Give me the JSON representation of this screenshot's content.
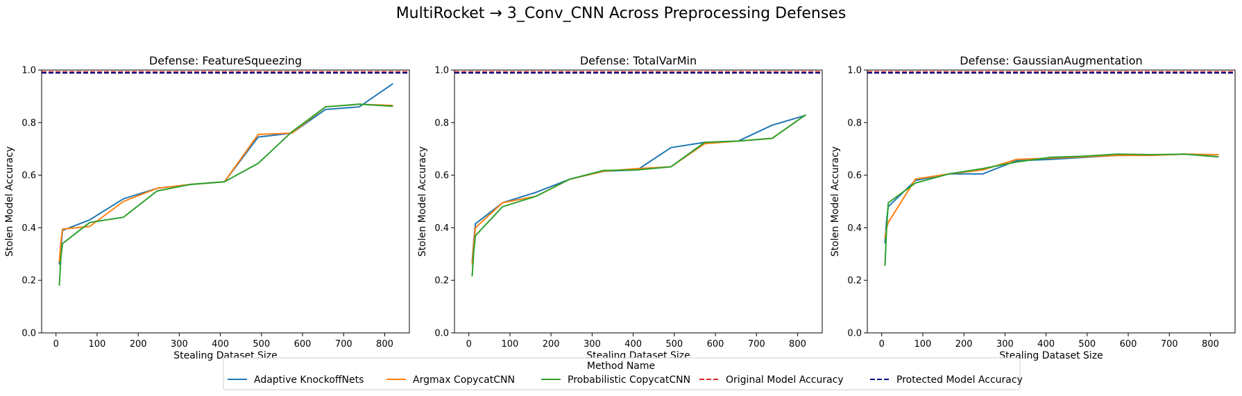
{
  "suptitle": "MultiRocket → 3_Conv_CNN Across Preprocessing Defenses",
  "legend": {
    "title": "Method Name",
    "placement": "bottom-center",
    "entries": [
      {
        "label": "Adaptive KnockoffNets",
        "color": "#1f77b4",
        "style": "solid"
      },
      {
        "label": "Argmax CopycatCNN",
        "color": "#ff7f0e",
        "style": "solid"
      },
      {
        "label": "Probabilistic CopycatCNN",
        "color": "#2ca02c",
        "style": "solid"
      },
      {
        "label": "Original Model Accuracy",
        "color": "#d62728",
        "style": "dashed"
      },
      {
        "label": "Protected Model Accuracy",
        "color": "#00008b",
        "style": "dashed"
      }
    ]
  },
  "chart_data": [
    {
      "type": "line",
      "title": "Defense: FeatureSqueezing",
      "xlabel": "Stealing Dataset Size",
      "ylabel": "Stolen Model Accuracy",
      "xlim": [
        -35,
        860
      ],
      "ylim": [
        0.0,
        1.0
      ],
      "xticks": [
        0,
        100,
        200,
        300,
        400,
        500,
        600,
        700,
        800
      ],
      "yticks": [
        0.0,
        0.2,
        0.4,
        0.6,
        0.8,
        1.0
      ],
      "grid": false,
      "series": [
        {
          "name": "Adaptive KnockoffNets",
          "x": [
            8,
            12,
            16,
            82,
            164,
            246,
            328,
            410,
            492,
            574,
            656,
            738,
            820
          ],
          "y": [
            0.26,
            0.33,
            0.39,
            0.43,
            0.51,
            0.55,
            0.565,
            0.575,
            0.745,
            0.76,
            0.85,
            0.86,
            0.948
          ]
        },
        {
          "name": "Argmax CopycatCNN",
          "x": [
            8,
            12,
            16,
            82,
            164,
            246,
            328,
            410,
            492,
            574,
            656,
            738,
            820
          ],
          "y": [
            0.27,
            0.35,
            0.395,
            0.405,
            0.5,
            0.55,
            0.565,
            0.575,
            0.755,
            0.76,
            0.86,
            0.87,
            0.865
          ]
        },
        {
          "name": "Probabilistic CopycatCNN",
          "x": [
            8,
            12,
            16,
            82,
            164,
            246,
            328,
            410,
            492,
            574,
            656,
            738,
            820
          ],
          "y": [
            0.18,
            0.29,
            0.34,
            0.42,
            0.44,
            0.54,
            0.565,
            0.575,
            0.645,
            0.765,
            0.86,
            0.87,
            0.862
          ]
        },
        {
          "name": "Original Model Accuracy",
          "x": [
            -35,
            860
          ],
          "y": [
            0.993,
            0.993
          ]
        },
        {
          "name": "Protected Model Accuracy",
          "x": [
            -35,
            860
          ],
          "y": [
            0.989,
            0.989
          ]
        }
      ]
    },
    {
      "type": "line",
      "title": "Defense: TotalVarMin",
      "xlabel": "Stealing Dataset Size",
      "ylabel": "Stolen Model Accuracy",
      "xlim": [
        -35,
        860
      ],
      "ylim": [
        0.0,
        1.0
      ],
      "xticks": [
        0,
        100,
        200,
        300,
        400,
        500,
        600,
        700,
        800
      ],
      "yticks": [
        0.0,
        0.2,
        0.4,
        0.6,
        0.8,
        1.0
      ],
      "grid": false,
      "series": [
        {
          "name": "Adaptive KnockoffNets",
          "x": [
            8,
            12,
            16,
            82,
            164,
            246,
            328,
            410,
            492,
            574,
            656,
            738,
            820
          ],
          "y": [
            0.27,
            0.35,
            0.415,
            0.495,
            0.535,
            0.585,
            0.615,
            0.62,
            0.705,
            0.725,
            0.73,
            0.79,
            0.828
          ]
        },
        {
          "name": "Argmax CopycatCNN",
          "x": [
            8,
            12,
            16,
            82,
            164,
            246,
            328,
            410,
            492,
            574,
            656,
            738,
            820
          ],
          "y": [
            0.26,
            0.34,
            0.4,
            0.495,
            0.52,
            0.585,
            0.615,
            0.625,
            0.632,
            0.72,
            0.73,
            0.74,
            0.83
          ]
        },
        {
          "name": "Probabilistic CopycatCNN",
          "x": [
            8,
            12,
            16,
            82,
            164,
            246,
            328,
            410,
            492,
            574,
            656,
            738,
            820
          ],
          "y": [
            0.215,
            0.31,
            0.37,
            0.48,
            0.52,
            0.585,
            0.618,
            0.62,
            0.632,
            0.725,
            0.73,
            0.74,
            0.83
          ]
        },
        {
          "name": "Original Model Accuracy",
          "x": [
            -35,
            860
          ],
          "y": [
            0.993,
            0.993
          ]
        },
        {
          "name": "Protected Model Accuracy",
          "x": [
            -35,
            860
          ],
          "y": [
            0.989,
            0.989
          ]
        }
      ]
    },
    {
      "type": "line",
      "title": "Defense: GaussianAugmentation",
      "xlabel": "Stealing Dataset Size",
      "ylabel": "Stolen Model Accuracy",
      "xlim": [
        -35,
        860
      ],
      "ylim": [
        0.0,
        1.0
      ],
      "xticks": [
        0,
        100,
        200,
        300,
        400,
        500,
        600,
        700,
        800
      ],
      "yticks": [
        0.0,
        0.2,
        0.4,
        0.6,
        0.8,
        1.0
      ],
      "grid": false,
      "series": [
        {
          "name": "Adaptive KnockoffNets",
          "x": [
            8,
            12,
            16,
            82,
            164,
            246,
            328,
            410,
            492,
            574,
            656,
            738,
            820
          ],
          "y": [
            0.34,
            0.43,
            0.48,
            0.58,
            0.605,
            0.605,
            0.655,
            0.66,
            0.668,
            0.675,
            0.676,
            0.68,
            0.67
          ]
        },
        {
          "name": "Argmax CopycatCNN",
          "x": [
            8,
            12,
            16,
            82,
            164,
            246,
            328,
            410,
            492,
            574,
            656,
            738,
            820
          ],
          "y": [
            0.36,
            0.4,
            0.42,
            0.585,
            0.605,
            0.62,
            0.66,
            0.665,
            0.67,
            0.675,
            0.675,
            0.68,
            0.678
          ]
        },
        {
          "name": "Probabilistic CopycatCNN",
          "x": [
            8,
            12,
            16,
            82,
            164,
            246,
            328,
            410,
            492,
            574,
            656,
            738,
            820
          ],
          "y": [
            0.255,
            0.4,
            0.495,
            0.57,
            0.605,
            0.625,
            0.65,
            0.668,
            0.672,
            0.68,
            0.678,
            0.68,
            0.67
          ]
        },
        {
          "name": "Original Model Accuracy",
          "x": [
            -35,
            860
          ],
          "y": [
            0.993,
            0.993
          ]
        },
        {
          "name": "Protected Model Accuracy",
          "x": [
            -35,
            860
          ],
          "y": [
            0.989,
            0.989
          ]
        }
      ]
    }
  ]
}
